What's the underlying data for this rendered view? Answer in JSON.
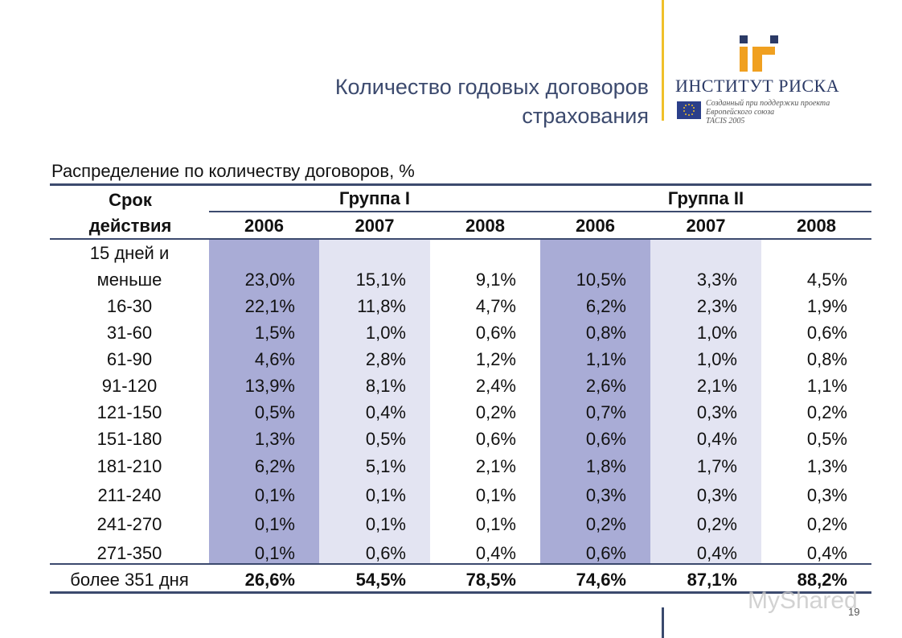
{
  "title": {
    "line1": "Количество годовых договоров",
    "line2": "страхования"
  },
  "logo": {
    "name": "ИНСТИТУТ РИСКА",
    "sub_line1": "Созданный при поддержки проекта",
    "sub_line2": "Европейского союза",
    "sub_line3": "TACIS 2005",
    "mark_colors": [
      "#f0a020",
      "#2b3a66"
    ]
  },
  "subtitle": "Распределение по количеству договоров, %",
  "table": {
    "row_header_line1": "Срок",
    "row_header_line2": "действия",
    "groups": [
      "Группа I",
      "Группа II"
    ],
    "years": [
      "2006",
      "2007",
      "2008",
      "2006",
      "2007",
      "2008"
    ],
    "first_row_label_line1": "15 дней и",
    "first_row_label_line2": "меньше",
    "rows": [
      {
        "label": "",
        "values": [
          "23,0%",
          "15,1%",
          "9,1%",
          "10,5%",
          "3,3%",
          "4,5%"
        ]
      },
      {
        "label": "16-30",
        "values": [
          "22,1%",
          "11,8%",
          "4,7%",
          "6,2%",
          "2,3%",
          "1,9%"
        ]
      },
      {
        "label": "31-60",
        "values": [
          "1,5%",
          "1,0%",
          "0,6%",
          "0,8%",
          "1,0%",
          "0,6%"
        ]
      },
      {
        "label": "61-90",
        "values": [
          "4,6%",
          "2,8%",
          "1,2%",
          "1,1%",
          "1,0%",
          "0,8%"
        ]
      },
      {
        "label": "91-120",
        "values": [
          "13,9%",
          "8,1%",
          "2,4%",
          "2,6%",
          "2,1%",
          "1,1%"
        ]
      },
      {
        "label": "121-150",
        "values": [
          "0,5%",
          "0,4%",
          "0,2%",
          "0,7%",
          "0,3%",
          "0,2%"
        ]
      },
      {
        "label": "151-180",
        "values": [
          "1,3%",
          "0,5%",
          "0,6%",
          "0,6%",
          "0,4%",
          "0,5%"
        ]
      },
      {
        "label": "181-210",
        "values": [
          "6,2%",
          "5,1%",
          "2,1%",
          "1,8%",
          "1,7%",
          "1,3%"
        ]
      },
      {
        "label": "211-240",
        "values": [
          "0,1%",
          "0,1%",
          "0,1%",
          "0,3%",
          "0,3%",
          "0,3%"
        ]
      },
      {
        "label": "241-270",
        "values": [
          "0,1%",
          "0,1%",
          "0,1%",
          "0,2%",
          "0,2%",
          "0,2%"
        ]
      },
      {
        "label": "271-350",
        "values": [
          "0,1%",
          "0,6%",
          "0,4%",
          "0,6%",
          "0,4%",
          "0,4%"
        ]
      }
    ],
    "total_row": {
      "label": "более 351 дня",
      "values": [
        "26,6%",
        "54,5%",
        "78,5%",
        "74,6%",
        "87,1%",
        "88,2%"
      ]
    },
    "column_shades": [
      "#a9acd6",
      "#e3e4f2",
      "#ffffff",
      "#a9acd6",
      "#e3e4f2",
      "#ffffff"
    ]
  },
  "watermark": "MyShared",
  "page_number": "19"
}
